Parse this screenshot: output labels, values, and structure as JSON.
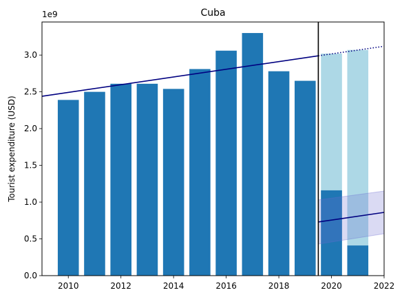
{
  "chart_data": {
    "type": "bar",
    "title": "Cuba",
    "xlabel": "",
    "ylabel": "Tourist expenditure (USD)",
    "y_offset_label": "1e9",
    "xlim": [
      2009,
      2022
    ],
    "ylim": [
      0,
      3.45
    ],
    "y_unit_multiplier": 1000000000,
    "x_ticks": [
      "2010",
      "2012",
      "2014",
      "2016",
      "2018",
      "2020",
      "2022"
    ],
    "y_ticks": [
      "0.0",
      "0.5",
      "1.0",
      "1.5",
      "2.0",
      "2.5",
      "3.0"
    ],
    "grid": false,
    "legend": "none",
    "series": [
      {
        "role": "actual",
        "x": [
          2010,
          2011,
          2012,
          2013,
          2014,
          2015,
          2016,
          2017,
          2018,
          2019,
          2020,
          2021
        ],
        "values": [
          2.39,
          2.5,
          2.61,
          2.61,
          2.54,
          2.81,
          3.06,
          3.3,
          2.78,
          2.65,
          1.16,
          0.41
        ],
        "color": "#1f77b4"
      },
      {
        "role": "counterfactual",
        "x": [
          2020,
          2021
        ],
        "values": [
          3.02,
          3.07
        ],
        "color": "#add8e6"
      }
    ],
    "trend_pre": {
      "x": [
        2009,
        2019.5
      ],
      "y": [
        2.44,
        2.99
      ],
      "color": "#000080"
    },
    "trend_extension": {
      "x": [
        2019.5,
        2022
      ],
      "y": [
        2.99,
        3.12
      ],
      "color": "#000080",
      "style": "dotted"
    },
    "trend_post": {
      "x": [
        2019.5,
        2022
      ],
      "y": [
        0.73,
        0.86
      ],
      "color": "#000080"
    },
    "post_band": {
      "x": [
        2019.5,
        2022
      ],
      "lower": [
        0.43,
        0.57
      ],
      "upper": [
        1.03,
        1.15
      ],
      "color": "#6a6ad0"
    },
    "break_year": 2019.5
  }
}
